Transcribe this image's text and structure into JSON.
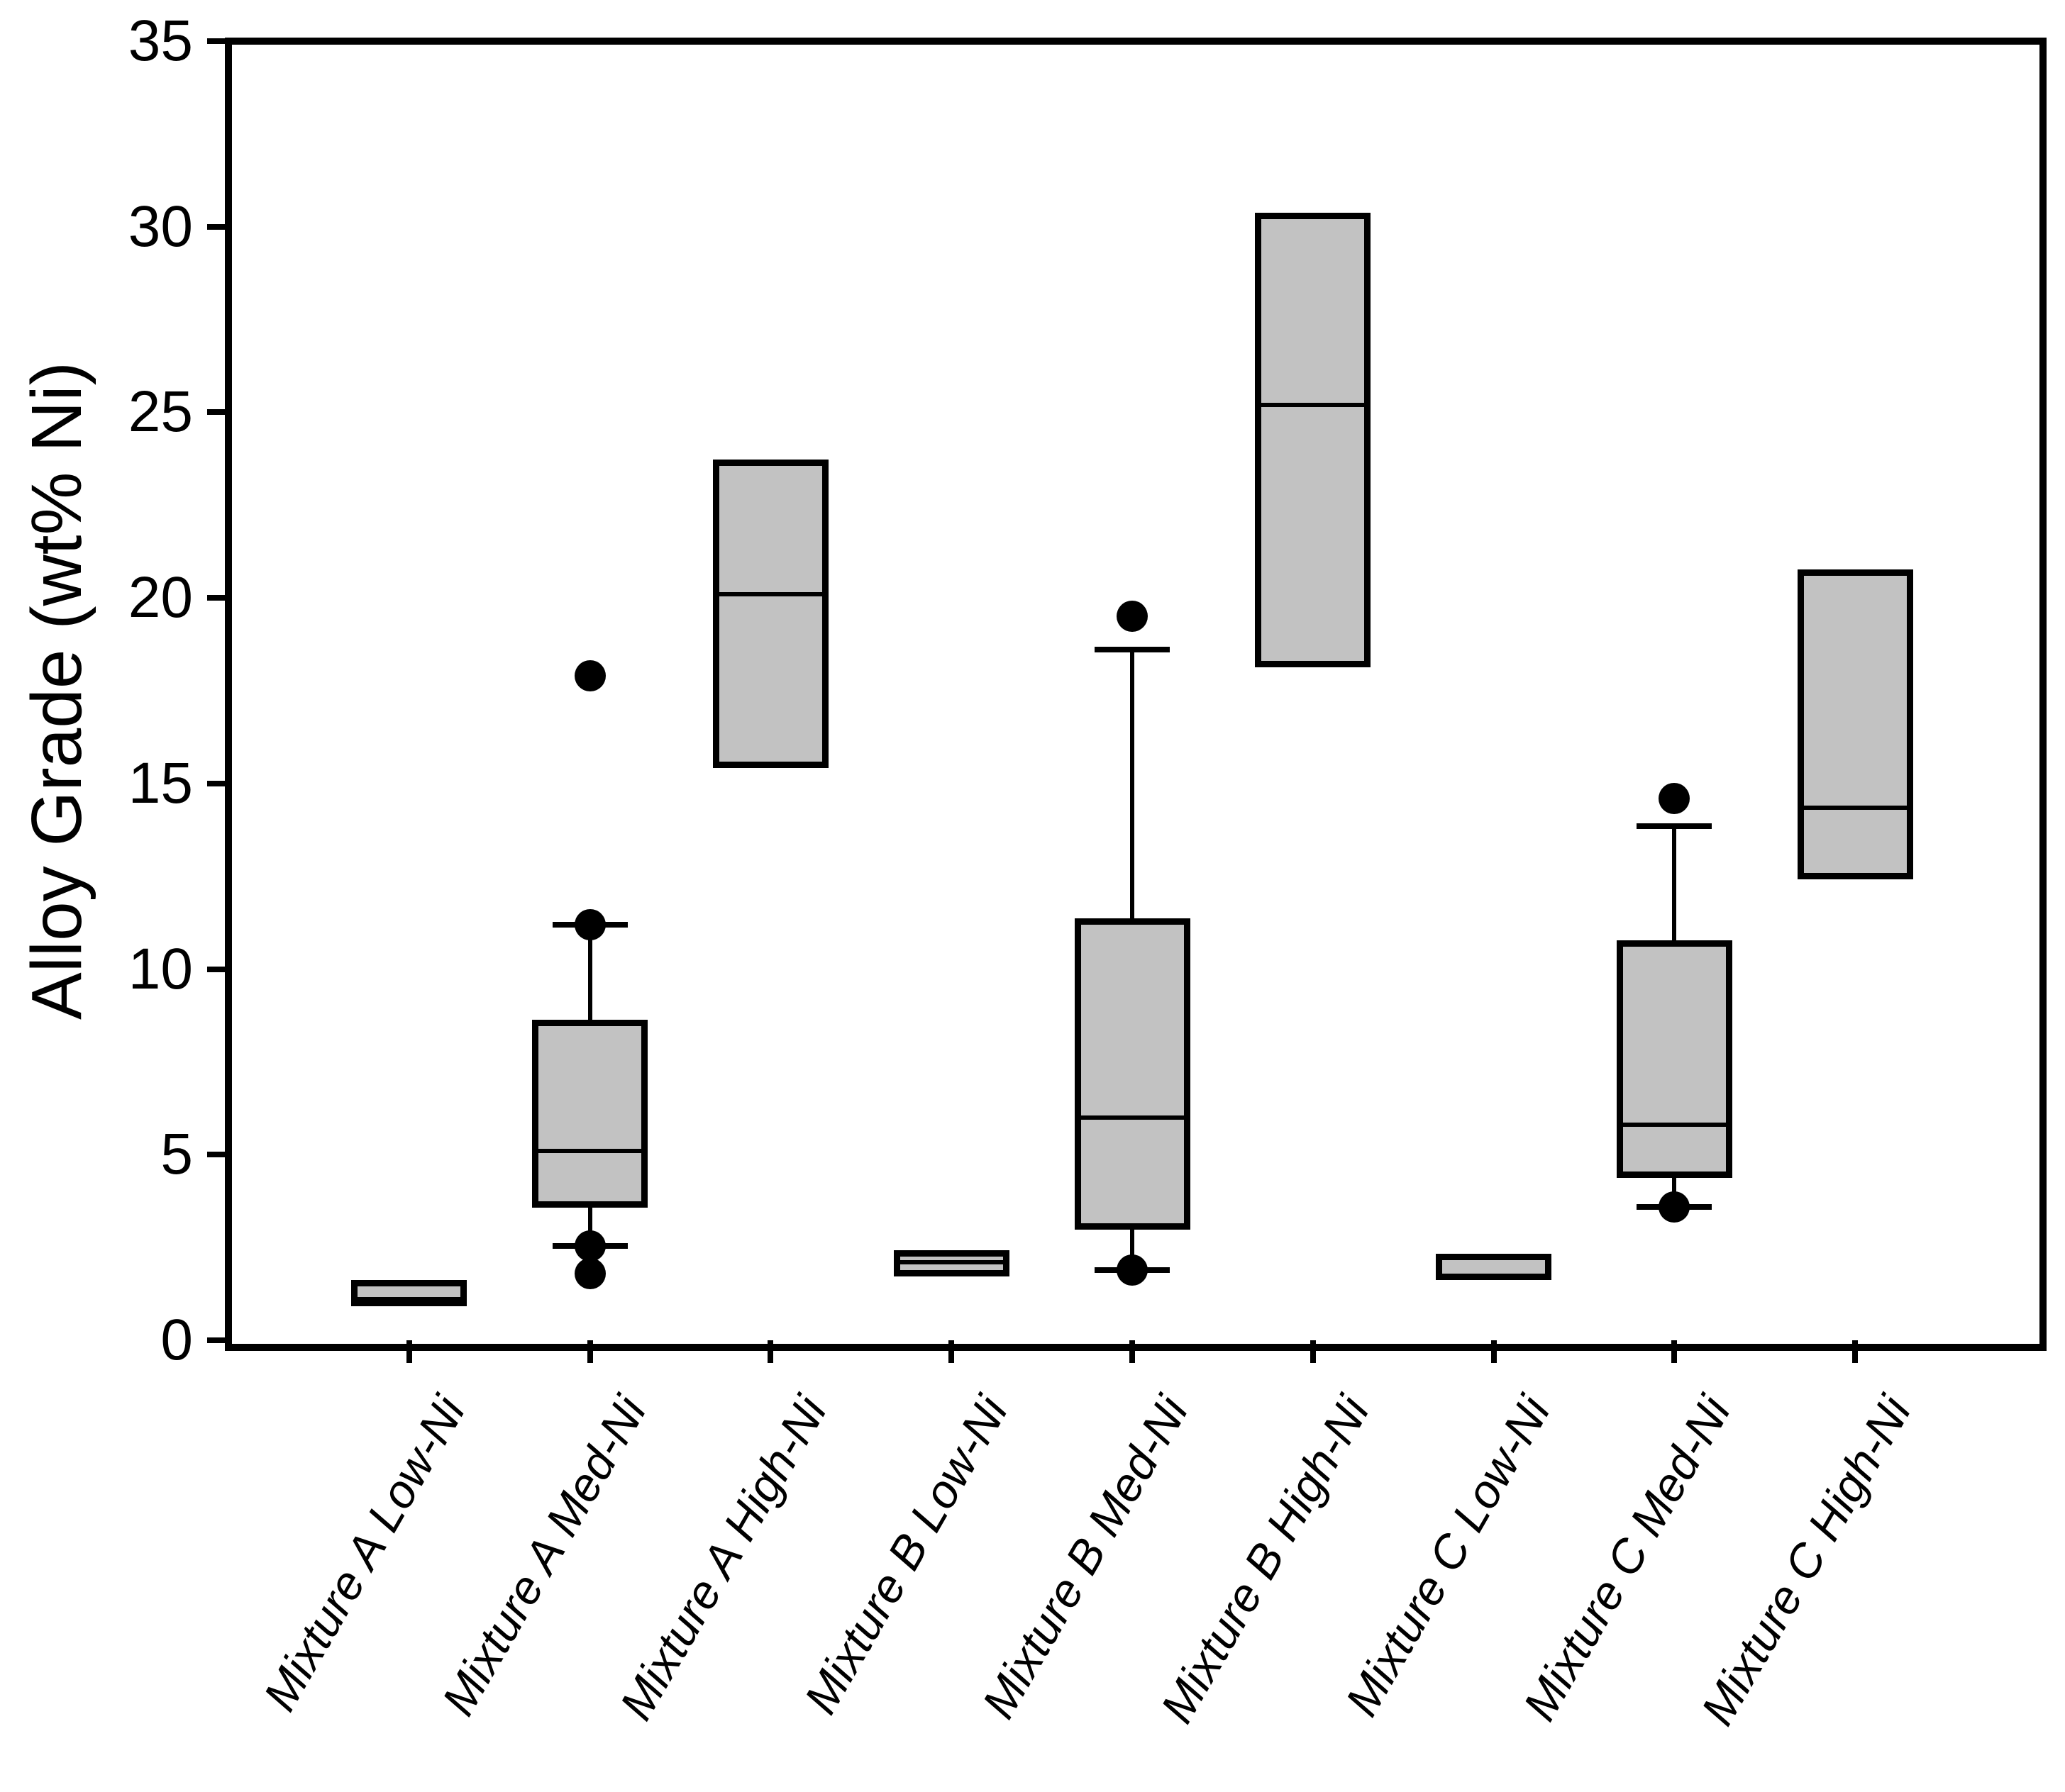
{
  "chart_data": {
    "type": "boxplot",
    "title": "",
    "ylabel": "Alloy Grade (wt% Ni)",
    "xlabel": "",
    "ylim": [
      0,
      35
    ],
    "yticks": [
      0,
      5,
      10,
      15,
      20,
      25,
      30,
      35
    ],
    "grid": false,
    "legend": null,
    "categories": [
      "Mixture A Low-Ni",
      "Mixture A Med-Ni",
      "Mixture A High-Ni",
      "Mixture B Low-Ni",
      "Mixture B Med-Ni",
      "Mixture B High-Ni",
      "Mixture C Low-Ni",
      "Mixture C Med-Ni",
      "Mixture C High-Ni"
    ],
    "boxes": [
      {
        "category": "Mixture A Low-Ni",
        "q1": 1.0,
        "median": 1.1,
        "q3": 1.55,
        "whisker_low": null,
        "whisker_high": null,
        "outliers": []
      },
      {
        "category": "Mixture A Med-Ni",
        "q1": 3.65,
        "median": 5.1,
        "q3": 8.55,
        "whisker_low": 2.55,
        "whisker_high": 11.2,
        "outliers": [
          1.8,
          2.55,
          11.2,
          17.9
        ]
      },
      {
        "category": "Mixture A High-Ni",
        "q1": 15.5,
        "median": 20.1,
        "q3": 23.65,
        "whisker_low": null,
        "whisker_high": null,
        "outliers": []
      },
      {
        "category": "Mixture B Low-Ni",
        "q1": 1.8,
        "median": 2.1,
        "q3": 2.35,
        "whisker_low": null,
        "whisker_high": null,
        "outliers": []
      },
      {
        "category": "Mixture B Med-Ni",
        "q1": 3.05,
        "median": 6.0,
        "q3": 11.3,
        "whisker_low": 1.9,
        "whisker_high": 18.6,
        "outliers": [
          1.9,
          19.5
        ]
      },
      {
        "category": "Mixture B High-Ni",
        "q1": 18.2,
        "median": 25.2,
        "q3": 30.3,
        "whisker_low": null,
        "whisker_high": null,
        "outliers": []
      },
      {
        "category": "Mixture C Low-Ni",
        "q1": 1.7,
        "median": null,
        "q3": 2.25,
        "whisker_low": null,
        "whisker_high": null,
        "outliers": []
      },
      {
        "category": "Mixture C Med-Ni",
        "q1": 4.45,
        "median": 5.8,
        "q3": 10.7,
        "whisker_low": 3.6,
        "whisker_high": 13.85,
        "outliers": [
          3.6,
          14.6
        ]
      },
      {
        "category": "Mixture C High-Ni",
        "q1": 12.5,
        "median": 14.35,
        "q3": 20.7,
        "whisker_low": null,
        "whisker_high": null,
        "outliers": []
      }
    ],
    "style": {
      "box_fill": "#c2c2c2",
      "line_color": "#000000",
      "background": "#ffffff"
    }
  }
}
